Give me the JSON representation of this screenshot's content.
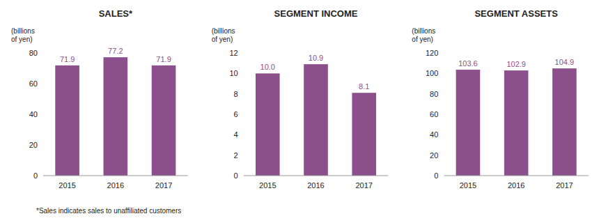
{
  "chart_data": [
    {
      "type": "bar",
      "title": "SALES*",
      "ylabel": "(billions\nof yen)",
      "categories": [
        "2015",
        "2016",
        "2017"
      ],
      "values": [
        71.9,
        77.2,
        71.9
      ],
      "value_labels": [
        "71.9",
        "77.2",
        "71.9"
      ],
      "data_labels": true,
      "color": "#8B508C",
      "ylim": [
        0,
        80
      ],
      "yticks": [
        0,
        20,
        40,
        60,
        80
      ],
      "grid": false,
      "annotations": [
        "*Sales indicates sales to unaffiliated customers"
      ]
    },
    {
      "type": "bar",
      "title": "SEGMENT INCOME",
      "ylabel": "(billions\nof yen)",
      "categories": [
        "2015",
        "2016",
        "2017"
      ],
      "values": [
        10.0,
        10.9,
        8.1
      ],
      "value_labels": [
        "10.0",
        "10.9",
        "8.1"
      ],
      "data_labels": true,
      "color": "#8B508C",
      "ylim": [
        0,
        12
      ],
      "yticks": [
        0,
        2,
        4,
        6,
        8,
        10,
        12
      ],
      "grid": false
    },
    {
      "type": "bar",
      "title": "SEGMENT ASSETS",
      "ylabel": "(billions\nof yen)",
      "categories": [
        "2015",
        "2016",
        "2017"
      ],
      "values": [
        103.6,
        102.9,
        104.9
      ],
      "value_labels": [
        "103.6",
        "102.9",
        "104.9"
      ],
      "data_labels": true,
      "color": "#8B508C",
      "ylim": [
        0,
        120
      ],
      "yticks": [
        0,
        20,
        40,
        60,
        80,
        100,
        120
      ],
      "grid": false
    }
  ]
}
